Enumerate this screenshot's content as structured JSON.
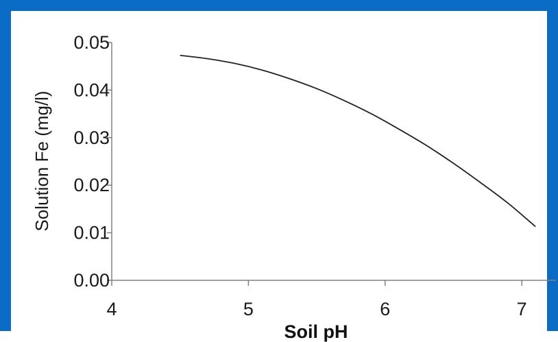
{
  "frame": {
    "border_color": "#0a6cc4",
    "background": "#ffffff"
  },
  "chart_data": {
    "type": "line",
    "title": "",
    "xlabel": "Soil pH",
    "ylabel": "Solution Fe (mg/l)",
    "xlim": [
      4,
      7.25
    ],
    "ylim": [
      0,
      0.05
    ],
    "x_ticks": [
      4,
      5,
      6,
      7
    ],
    "x_tick_labels": [
      "4",
      "5",
      "6",
      "7"
    ],
    "y_ticks": [
      0,
      0.01,
      0.02,
      0.03,
      0.04,
      0.05
    ],
    "y_tick_labels": [
      "0.00",
      "0.01",
      "0.02",
      "0.03",
      "0.04",
      "0.05"
    ],
    "grid": false,
    "legend": "none",
    "series": [
      {
        "color": "#222222",
        "x": [
          4.5,
          4.7,
          4.9,
          5.1,
          5.3,
          5.5,
          5.7,
          5.9,
          6.1,
          6.3,
          6.5,
          6.7,
          6.9,
          7.1
        ],
        "y": [
          0.0473,
          0.0466,
          0.0456,
          0.0442,
          0.0424,
          0.0403,
          0.0378,
          0.035,
          0.0318,
          0.0284,
          0.0246,
          0.0205,
          0.0162,
          0.0113
        ]
      }
    ]
  }
}
